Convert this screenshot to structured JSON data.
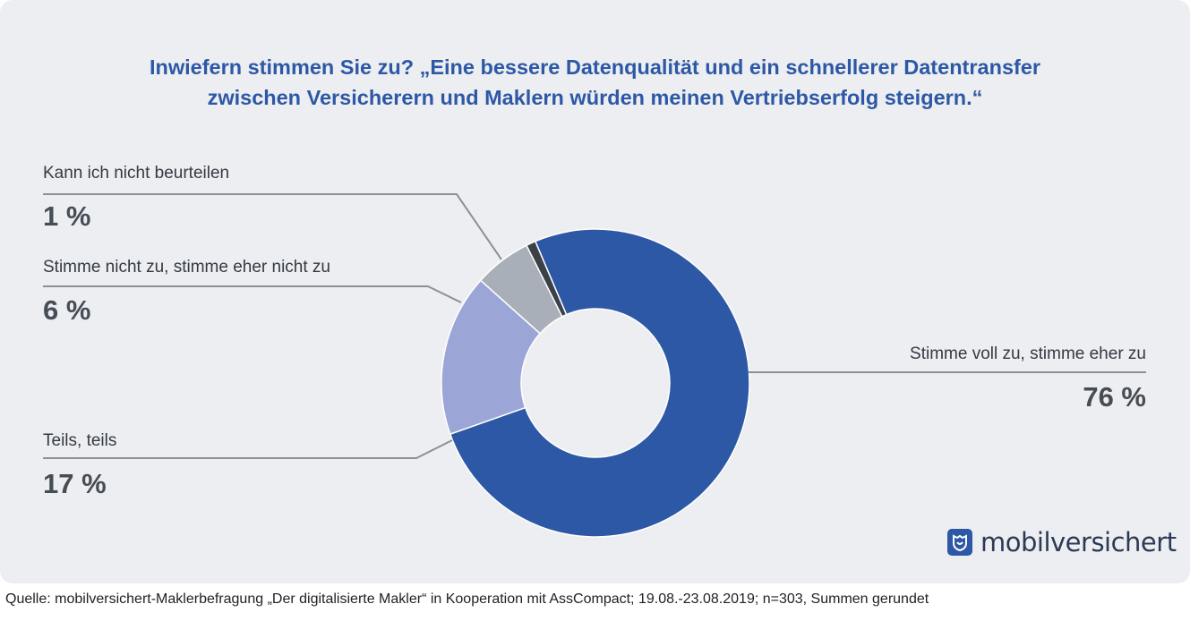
{
  "chart_data": {
    "type": "pie",
    "donut": true,
    "title_lines": [
      "Inwiefern stimmen Sie zu? „Eine bessere Datenqualität und ein schnellerer Datentransfer",
      "zwischen Versicherern und Maklern würden meinen Vertriebserfolg steigern.“"
    ],
    "slices": [
      {
        "label": "Stimme voll zu, stimme eher zu",
        "value": 76,
        "display": "76 %",
        "color": "#2d58a5"
      },
      {
        "label": "Teils, teils",
        "value": 17,
        "display": "17 %",
        "color": "#9ca6d6"
      },
      {
        "label": "Stimme nicht zu, stimme eher nicht zu",
        "value": 6,
        "display": "6 %",
        "color": "#a9afb8"
      },
      {
        "label": "Kann ich nicht beurteilen",
        "value": 1,
        "display": "1 %",
        "color": "#3c4148"
      }
    ]
  },
  "logo": {
    "text": "mobilversichert"
  },
  "source": "Quelle: mobilversichert-Maklerbefragung „Der digitalisierte Makler“ in Kooperation mit AssCompact; 19.08.-23.08.2019; n=303, Summen gerundet"
}
